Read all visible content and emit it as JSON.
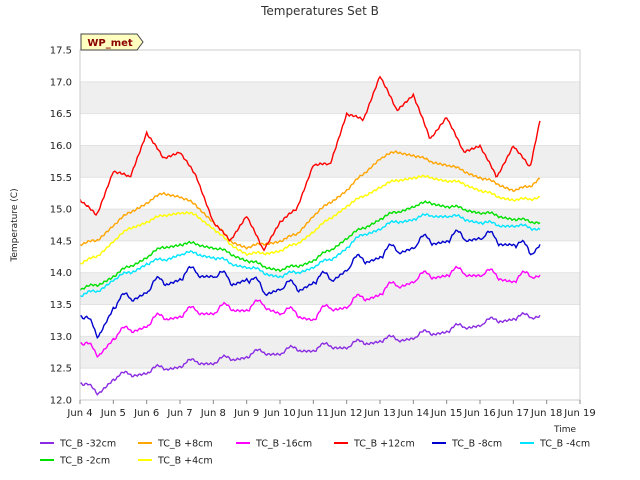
{
  "chart_data": {
    "type": "line",
    "title": "Temperatures Set B",
    "xlabel": "Time",
    "ylabel": "Temperature (C)",
    "station_tag": "WP_met",
    "x_ticks": [
      "Jun 4",
      "Jun 5",
      "Jun 6",
      "Jun 7",
      "Jun 8",
      "Jun 9",
      "Jun 10",
      "Jun 11",
      "Jun 12",
      "Jun 13",
      "Jun 14",
      "Jun 15",
      "Jun 16",
      "Jun 17",
      "Jun 18",
      "Jun 19"
    ],
    "xlim": [
      "Jun 4",
      "Jun 19"
    ],
    "ylim": [
      12.0,
      17.5
    ],
    "y_ticks": [
      12.0,
      12.5,
      13.0,
      13.5,
      14.0,
      14.5,
      15.0,
      15.5,
      16.0,
      16.5,
      17.0,
      17.5
    ],
    "background_bands": true,
    "legend_position": "bottom",
    "x_days": [
      4.0,
      4.5,
      5.0,
      5.5,
      6.0,
      6.5,
      7.0,
      7.5,
      8.0,
      8.5,
      9.0,
      9.5,
      10.0,
      10.5,
      11.0,
      11.5,
      12.0,
      12.5,
      13.0,
      13.5,
      14.0,
      14.5,
      15.0,
      15.5,
      16.0,
      16.5,
      17.0,
      17.5,
      17.8
    ],
    "series": [
      {
        "name": "TC_B -32cm",
        "color": "#8a2be2",
        "values": [
          12.3,
          12.1,
          12.35,
          12.4,
          12.45,
          12.5,
          12.55,
          12.6,
          12.6,
          12.65,
          12.7,
          12.75,
          12.75,
          12.8,
          12.8,
          12.85,
          12.85,
          12.9,
          12.95,
          12.95,
          13.0,
          13.05,
          13.1,
          13.15,
          13.2,
          13.25,
          13.3,
          13.3,
          13.35
        ]
      },
      {
        "name": "TC_B +8cm",
        "color": "#ffa500",
        "values": [
          14.45,
          14.5,
          14.75,
          14.95,
          15.1,
          15.25,
          15.2,
          15.05,
          14.8,
          14.5,
          14.4,
          14.45,
          14.5,
          14.6,
          14.9,
          15.1,
          15.3,
          15.55,
          15.8,
          15.9,
          15.85,
          15.75,
          15.7,
          15.6,
          15.5,
          15.4,
          15.3,
          15.35,
          15.5
        ]
      },
      {
        "name": "TC_B -16cm",
        "color": "#ff00ff",
        "values": [
          12.95,
          12.7,
          13.0,
          13.1,
          13.2,
          13.3,
          13.35,
          13.4,
          13.4,
          13.45,
          13.45,
          13.5,
          13.4,
          13.35,
          13.3,
          13.45,
          13.5,
          13.6,
          13.7,
          13.8,
          13.9,
          13.95,
          14.0,
          14.0,
          14.0,
          13.95,
          13.9,
          13.95,
          14.0
        ]
      },
      {
        "name": "TC_B +12cm",
        "color": "#ff0000",
        "values": [
          15.15,
          14.9,
          15.6,
          15.5,
          16.2,
          15.8,
          15.9,
          15.5,
          14.8,
          14.5,
          14.9,
          14.35,
          14.8,
          15.0,
          15.7,
          15.7,
          16.5,
          16.4,
          17.1,
          16.55,
          16.8,
          16.1,
          16.45,
          15.9,
          16.0,
          15.5,
          16.0,
          15.65,
          16.4
        ]
      },
      {
        "name": "TC_B -8cm",
        "color": "#0000cd",
        "values": [
          13.4,
          13.0,
          13.5,
          13.6,
          13.75,
          13.85,
          13.95,
          14.0,
          14.0,
          13.85,
          13.95,
          13.7,
          13.8,
          13.75,
          13.9,
          13.9,
          14.1,
          14.2,
          14.3,
          14.35,
          14.45,
          14.5,
          14.55,
          14.55,
          14.6,
          14.5,
          14.5,
          14.3,
          14.5
        ]
      },
      {
        "name": "TC_B -4cm",
        "color": "#00e5ff",
        "values": [
          13.65,
          13.7,
          13.9,
          14.0,
          14.15,
          14.2,
          14.3,
          14.3,
          14.25,
          14.15,
          14.1,
          14.0,
          13.95,
          14.0,
          14.1,
          14.2,
          14.4,
          14.6,
          14.7,
          14.8,
          14.85,
          14.9,
          14.9,
          14.85,
          14.8,
          14.75,
          14.75,
          14.7,
          14.7
        ]
      },
      {
        "name": "TC_B -2cm",
        "color": "#00e000",
        "values": [
          13.75,
          13.8,
          13.95,
          14.1,
          14.25,
          14.4,
          14.45,
          14.45,
          14.4,
          14.3,
          14.2,
          14.1,
          14.05,
          14.1,
          14.2,
          14.35,
          14.55,
          14.7,
          14.85,
          14.95,
          15.05,
          15.1,
          15.05,
          15.0,
          14.95,
          14.9,
          14.85,
          14.8,
          14.8
        ]
      },
      {
        "name": "TC_B +4cm",
        "color": "#ffff00",
        "values": [
          14.15,
          14.25,
          14.5,
          14.7,
          14.8,
          14.9,
          14.95,
          14.9,
          14.7,
          14.45,
          14.3,
          14.3,
          14.35,
          14.45,
          14.65,
          14.85,
          15.05,
          15.2,
          15.35,
          15.45,
          15.5,
          15.5,
          15.45,
          15.4,
          15.3,
          15.2,
          15.15,
          15.15,
          15.2
        ]
      }
    ]
  }
}
